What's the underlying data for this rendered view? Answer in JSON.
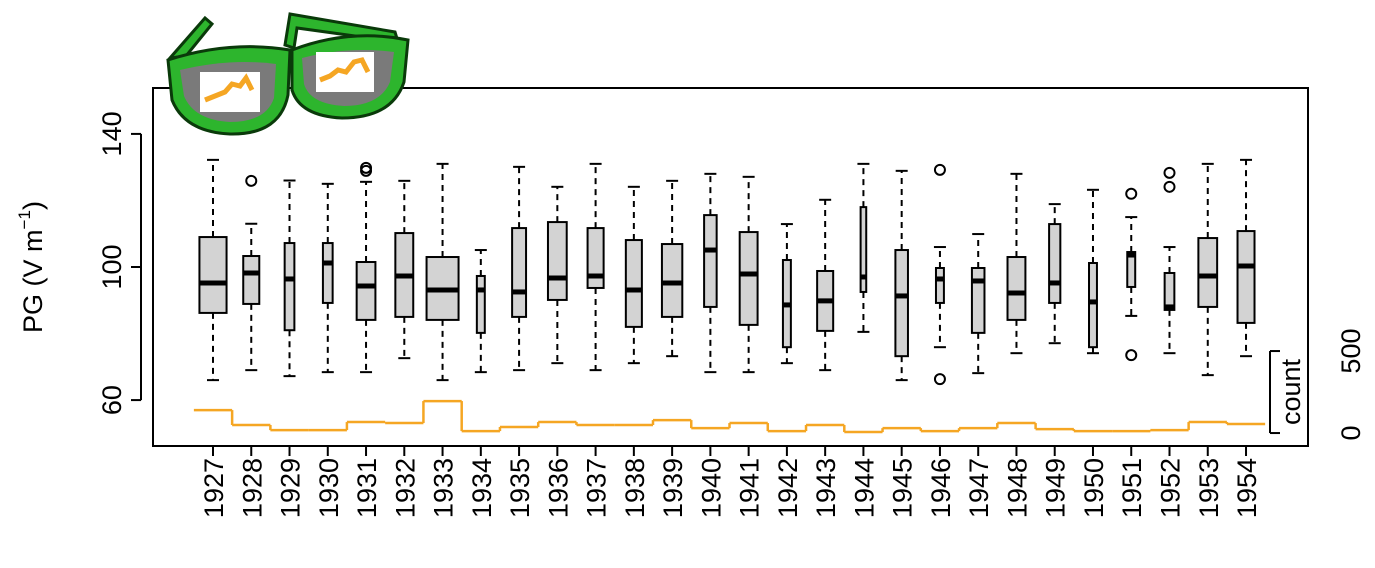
{
  "chart_data": {
    "type": "boxplot",
    "ylabel": {
      "main": "PG (V m",
      "sup": "−1",
      "end": ")"
    },
    "y2label": "count",
    "categories": [
      "1927",
      "1928",
      "1929",
      "1930",
      "1931",
      "1932",
      "1933",
      "1934",
      "1935",
      "1936",
      "1937",
      "1938",
      "1939",
      "1940",
      "1941",
      "1942",
      "1943",
      "1944",
      "1945",
      "1946",
      "1947",
      "1948",
      "1949",
      "1950",
      "1951",
      "1952",
      "1953",
      "1954"
    ],
    "boxes": [
      {
        "whislo": 66,
        "q1": 86.2,
        "med": 95.2,
        "q3": 109,
        "whishi": 132.2,
        "fliers": []
      },
      {
        "whislo": 69,
        "q1": 88.9,
        "med": 98.2,
        "q3": 103.3,
        "whishi": 113,
        "fliers": [
          125.9
        ]
      },
      {
        "whislo": 67.2,
        "q1": 81,
        "med": 96.4,
        "q3": 107.2,
        "whishi": 126,
        "fliers": []
      },
      {
        "whislo": 68.4,
        "q1": 89.2,
        "med": 101.2,
        "q3": 107.2,
        "whishi": 125,
        "fliers": []
      },
      {
        "whislo": 68.4,
        "q1": 84.1,
        "med": 94.3,
        "q3": 101.5,
        "whishi": 125.6,
        "fliers": [
          129.8,
          128.9
        ]
      },
      {
        "whislo": 72.6,
        "q1": 85,
        "med": 97.3,
        "q3": 110.2,
        "whishi": 125.9,
        "fliers": []
      },
      {
        "whislo": 66,
        "q1": 84.1,
        "med": 93.1,
        "q3": 103,
        "whishi": 131,
        "fliers": []
      },
      {
        "whislo": 68.4,
        "q1": 80.2,
        "med": 93.1,
        "q3": 97.3,
        "whishi": 105.1,
        "fliers": []
      },
      {
        "whislo": 69,
        "q1": 85,
        "med": 92.5,
        "q3": 111.7,
        "whishi": 130.1,
        "fliers": []
      },
      {
        "whislo": 71.1,
        "q1": 90.1,
        "med": 96.7,
        "q3": 113.5,
        "whishi": 124.1,
        "fliers": []
      },
      {
        "whislo": 69,
        "q1": 93.7,
        "med": 97.3,
        "q3": 111.7,
        "whishi": 131,
        "fliers": []
      },
      {
        "whislo": 71.1,
        "q1": 82,
        "med": 93.1,
        "q3": 108.1,
        "whishi": 124.1,
        "fliers": []
      },
      {
        "whislo": 73.2,
        "q1": 85,
        "med": 95.2,
        "q3": 106.9,
        "whishi": 125.9,
        "fliers": []
      },
      {
        "whislo": 68.4,
        "q1": 88,
        "med": 105.1,
        "q3": 115.6,
        "whishi": 128,
        "fliers": []
      },
      {
        "whislo": 68.4,
        "q1": 82.6,
        "med": 97.9,
        "q3": 110.5,
        "whishi": 127.1,
        "fliers": []
      },
      {
        "whislo": 71.1,
        "q1": 75.9,
        "med": 88.6,
        "q3": 102.1,
        "whishi": 112.9,
        "fliers": []
      },
      {
        "whislo": 69,
        "q1": 80.8,
        "med": 89.8,
        "q3": 98.8,
        "whishi": 120.2,
        "fliers": []
      },
      {
        "whislo": 80.5,
        "q1": 92.5,
        "med": 97,
        "q3": 118,
        "whishi": 131,
        "fliers": []
      },
      {
        "whislo": 66,
        "q1": 73.2,
        "med": 91.3,
        "q3": 105.1,
        "whishi": 128.9,
        "fliers": []
      },
      {
        "whislo": 75.9,
        "q1": 89.2,
        "med": 96.4,
        "q3": 99.7,
        "whishi": 106,
        "fliers": [
          129.2,
          66.3
        ]
      },
      {
        "whislo": 68.1,
        "q1": 80.2,
        "med": 95.8,
        "q3": 99.7,
        "whishi": 109.9,
        "fliers": []
      },
      {
        "whislo": 74.1,
        "q1": 84.1,
        "med": 92.2,
        "q3": 103,
        "whishi": 128,
        "fliers": []
      },
      {
        "whislo": 77.1,
        "q1": 89.2,
        "med": 95.2,
        "q3": 112.9,
        "whishi": 118.9,
        "fliers": []
      },
      {
        "whislo": 74.1,
        "q1": 75.9,
        "med": 89.5,
        "q3": 101.2,
        "whishi": 123.2,
        "fliers": []
      },
      {
        "whislo": 85.3,
        "q1": 94,
        "med": 103.6,
        "q3": 104.5,
        "whishi": 115,
        "fliers": [
          122,
          73.5
        ]
      },
      {
        "whislo": 74.1,
        "q1": 87.1,
        "med": 88,
        "q3": 98.2,
        "whishi": 106,
        "fliers": [
          128.3,
          124.1
        ]
      },
      {
        "whislo": 67.5,
        "q1": 88,
        "med": 97.3,
        "q3": 108.7,
        "whishi": 131,
        "fliers": []
      },
      {
        "whislo": 73.2,
        "q1": 83.2,
        "med": 100.3,
        "q3": 110.8,
        "whishi": 132.2,
        "fliers": []
      }
    ],
    "box_color": "#d3d3d3",
    "counts": {
      "axis": "y2",
      "color": "#f5a623",
      "values": [
        140,
        49,
        18,
        18,
        67,
        61,
        195,
        12,
        37,
        67,
        49,
        49,
        79,
        30,
        61,
        12,
        49,
        6,
        30,
        12,
        30,
        61,
        24,
        12,
        12,
        18,
        67,
        55
      ]
    },
    "ylim": [
      46.2,
      153.8
    ],
    "yticks": [
      60,
      100,
      140
    ],
    "y2lim": [
      -79,
      2104
    ],
    "y2ticks": [
      0,
      500
    ]
  }
}
